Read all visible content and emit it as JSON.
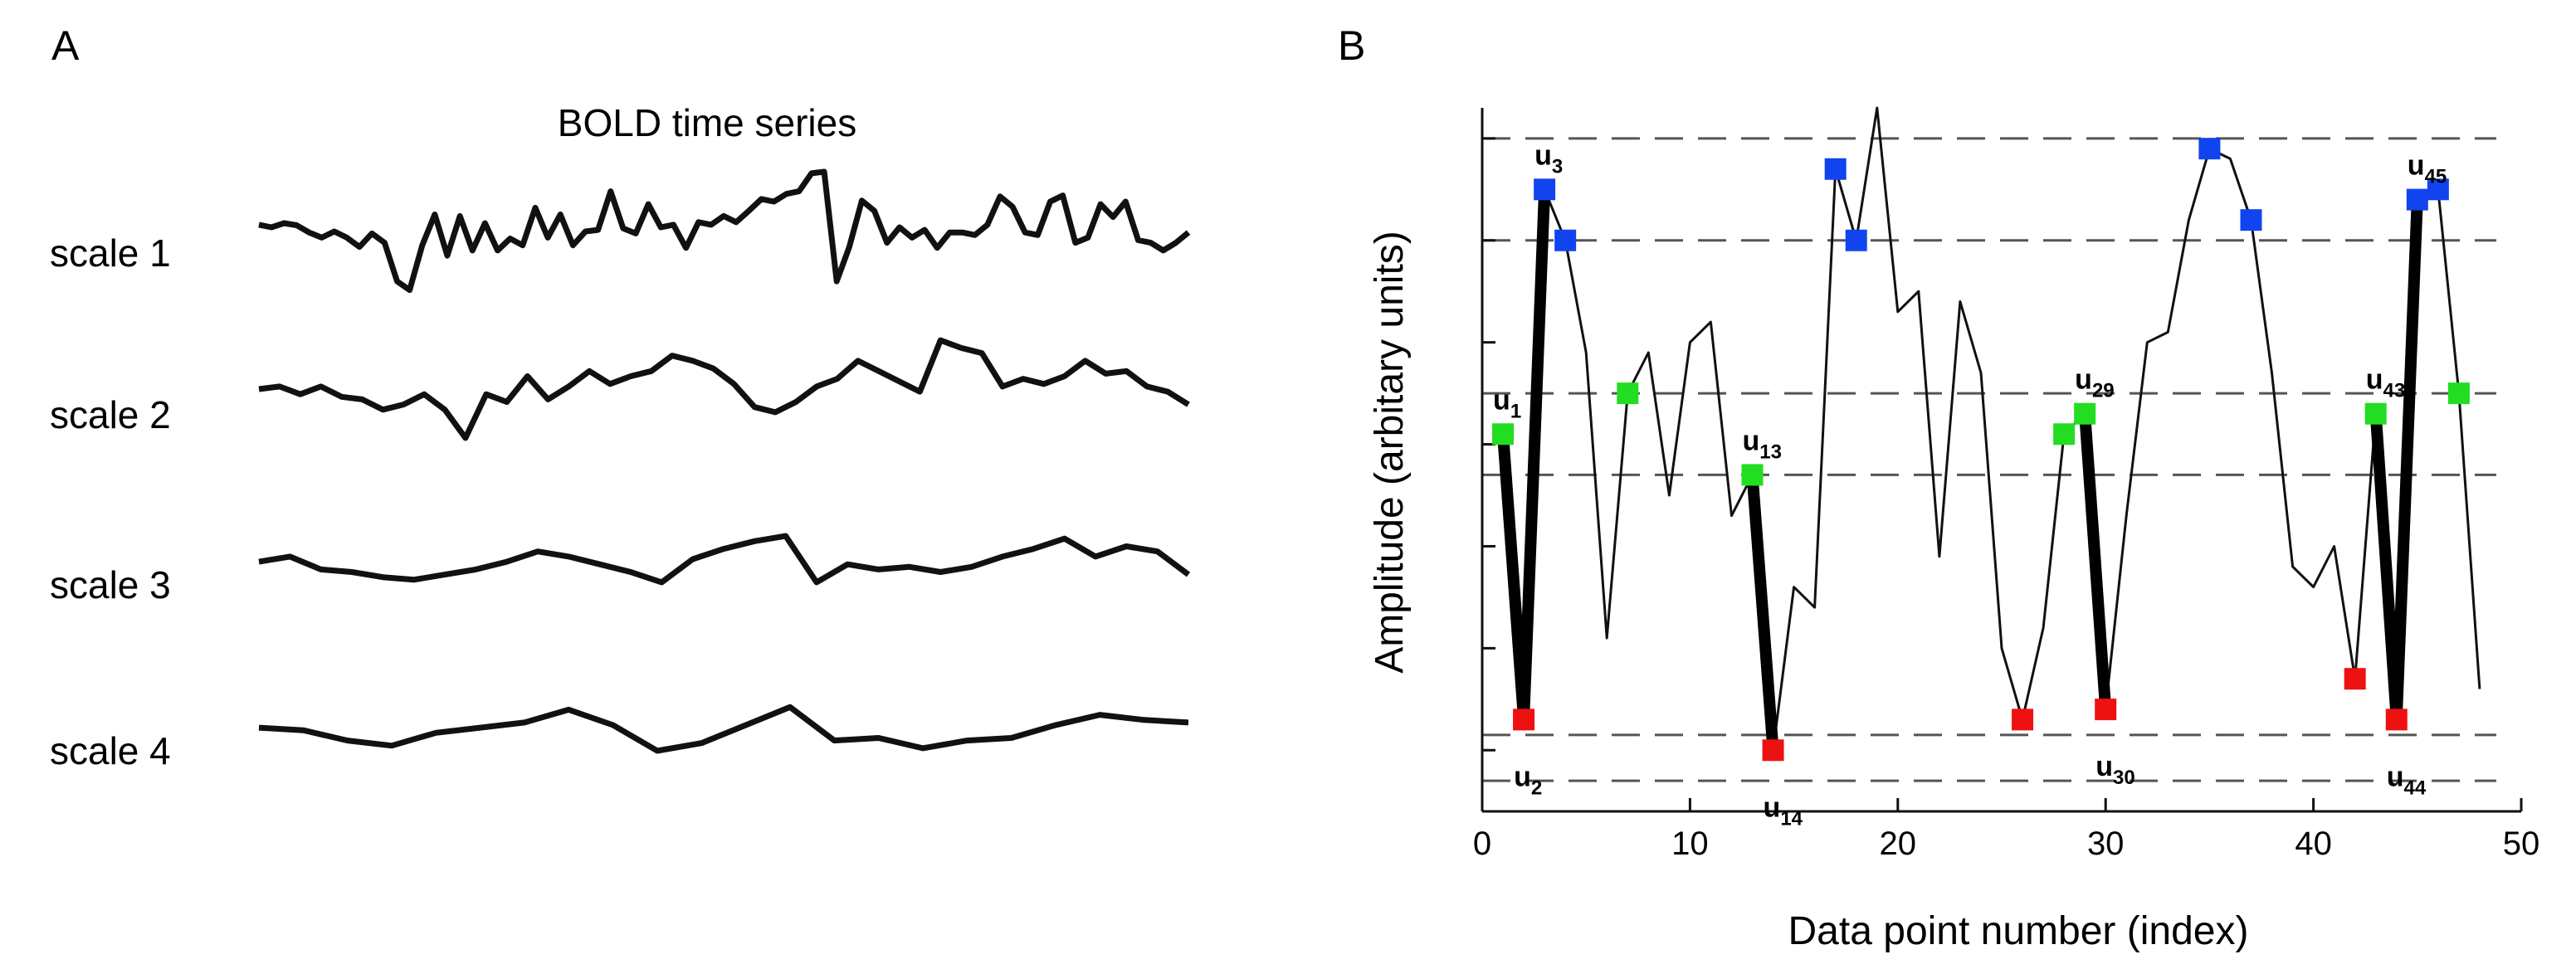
{
  "figure": {
    "panel_a_label": "A",
    "panel_b_label": "B"
  },
  "chart_data": [
    {
      "type": "line",
      "panel": "A",
      "title": "BOLD time series",
      "series": [
        {
          "name": "scale 1",
          "values": [
            0.55,
            0.5,
            0.58,
            0.54,
            0.4,
            0.3,
            0.42,
            0.3,
            0.12,
            0.38,
            0.2,
            -0.55,
            -0.72,
            0.15,
            0.75,
            -0.05,
            0.72,
            0.05,
            0.58,
            0.05,
            0.28,
            0.15,
            0.88,
            0.3,
            0.75,
            0.15,
            0.42,
            0.45,
            1.2,
            0.48,
            0.38,
            0.95,
            0.5,
            0.55,
            0.1,
            0.6,
            0.55,
            0.72,
            0.6,
            0.82,
            1.05,
            1.0,
            1.15,
            1.2,
            1.55,
            1.58,
            -0.55,
            0.12,
            1.02,
            0.82,
            0.2,
            0.5,
            0.3,
            0.45,
            0.1,
            0.4,
            0.4,
            0.35,
            0.55,
            1.1,
            0.9,
            0.4,
            0.35,
            1.0,
            1.12,
            0.2,
            0.3,
            0.95,
            0.7,
            1.0,
            0.25,
            0.2,
            0.05,
            0.2,
            0.4
          ]
        },
        {
          "name": "scale 2",
          "values": [
            0.5,
            0.55,
            0.4,
            0.55,
            0.35,
            0.3,
            0.1,
            0.2,
            0.4,
            0.1,
            -0.45,
            0.4,
            0.25,
            0.75,
            0.3,
            0.55,
            0.85,
            0.6,
            0.75,
            0.85,
            1.15,
            1.05,
            0.9,
            0.6,
            0.15,
            0.05,
            0.25,
            0.55,
            0.7,
            1.05,
            0.85,
            0.65,
            0.45,
            1.45,
            1.3,
            1.2,
            0.55,
            0.7,
            0.6,
            0.75,
            1.05,
            0.8,
            0.85,
            0.55,
            0.45,
            0.2
          ]
        },
        {
          "name": "scale 3",
          "values": [
            0.45,
            0.55,
            0.3,
            0.25,
            0.15,
            0.1,
            0.2,
            0.3,
            0.45,
            0.65,
            0.55,
            0.4,
            0.25,
            0.05,
            0.5,
            0.7,
            0.85,
            0.95,
            0.05,
            0.4,
            0.3,
            0.35,
            0.25,
            0.35,
            0.55,
            0.7,
            0.9,
            0.55,
            0.75,
            0.65,
            0.2
          ]
        },
        {
          "name": "scale 4",
          "values": [
            0.45,
            0.4,
            0.2,
            0.1,
            0.35,
            0.45,
            0.55,
            0.8,
            0.5,
            0.0,
            0.15,
            0.5,
            0.85,
            0.2,
            0.25,
            0.05,
            0.2,
            0.25,
            0.5,
            0.7,
            0.6,
            0.55
          ]
        }
      ]
    },
    {
      "type": "line",
      "panel": "B",
      "xlabel": "Data point number (index)",
      "ylabel": "Amplitude (arbitary units)",
      "xlim": [
        0,
        50
      ],
      "ylim": [
        -0.3,
        6.6
      ],
      "x_ticks": [
        0,
        10,
        20,
        30,
        40,
        50
      ],
      "x_tick_labels": [
        "0",
        "10",
        "20",
        "30",
        "40",
        "50"
      ],
      "y_ticks": [
        0.3,
        1.3,
        2.3,
        3.3,
        4.3,
        5.3,
        6.3
      ],
      "dashed_levels": [
        0.0,
        0.45,
        3.0,
        3.8,
        5.3,
        6.3
      ],
      "x": [
        1,
        2,
        3,
        4,
        5,
        6,
        7,
        8,
        9,
        10,
        11,
        12,
        13,
        14,
        15,
        16,
        17,
        18,
        19,
        20,
        21,
        22,
        23,
        24,
        25,
        26,
        27,
        28,
        29,
        30,
        31,
        32,
        33,
        34,
        35,
        36,
        37,
        38,
        39,
        40,
        41,
        42,
        43,
        44,
        45,
        46,
        47,
        48
      ],
      "y": [
        3.4,
        0.6,
        5.8,
        5.3,
        4.2,
        1.4,
        3.8,
        4.2,
        2.8,
        4.3,
        4.5,
        2.6,
        3.0,
        0.3,
        1.9,
        1.7,
        6.0,
        5.3,
        6.6,
        4.6,
        4.8,
        2.2,
        4.7,
        4.0,
        1.3,
        0.6,
        1.5,
        3.4,
        3.6,
        0.7,
        2.6,
        4.3,
        4.4,
        5.5,
        6.2,
        6.1,
        5.5,
        4.0,
        2.1,
        1.9,
        2.3,
        1.0,
        3.6,
        0.6,
        5.7,
        5.8,
        3.8,
        0.9
      ]
    }
  ],
  "markers": {
    "colors": {
      "green": "#22dd22",
      "red": "#ee1111",
      "blue": "#1144ee"
    },
    "green": [
      1,
      7,
      13,
      28,
      29,
      43,
      47
    ],
    "red": [
      2,
      14,
      26,
      30,
      42,
      44
    ],
    "blue": [
      3,
      4,
      17,
      18,
      35,
      37,
      45,
      46
    ]
  },
  "bold_segments": [
    [
      1,
      2
    ],
    [
      2,
      3
    ],
    [
      13,
      14
    ],
    [
      29,
      30
    ],
    [
      43,
      44
    ],
    [
      44,
      45
    ]
  ],
  "annotations": [
    {
      "main": "u",
      "sub": "1",
      "x": 1,
      "y": 3.4,
      "pos": "above"
    },
    {
      "main": "u",
      "sub": "2",
      "x": 2,
      "y": 0.6,
      "pos": "below"
    },
    {
      "main": "u",
      "sub": "3",
      "x": 3,
      "y": 5.8,
      "pos": "above"
    },
    {
      "main": "u",
      "sub": "13",
      "x": 13,
      "y": 3.0,
      "pos": "above"
    },
    {
      "main": "u",
      "sub": "14",
      "x": 14,
      "y": 0.3,
      "pos": "below"
    },
    {
      "main": "u",
      "sub": "29",
      "x": 29,
      "y": 3.6,
      "pos": "above"
    },
    {
      "main": "u",
      "sub": "30",
      "x": 30,
      "y": 0.7,
      "pos": "below"
    },
    {
      "main": "u",
      "sub": "43",
      "x": 43,
      "y": 3.6,
      "pos": "above"
    },
    {
      "main": "u",
      "sub": "44",
      "x": 44,
      "y": 0.6,
      "pos": "below"
    },
    {
      "main": "u",
      "sub": "45",
      "x": 45,
      "y": 5.7,
      "pos": "above"
    }
  ]
}
